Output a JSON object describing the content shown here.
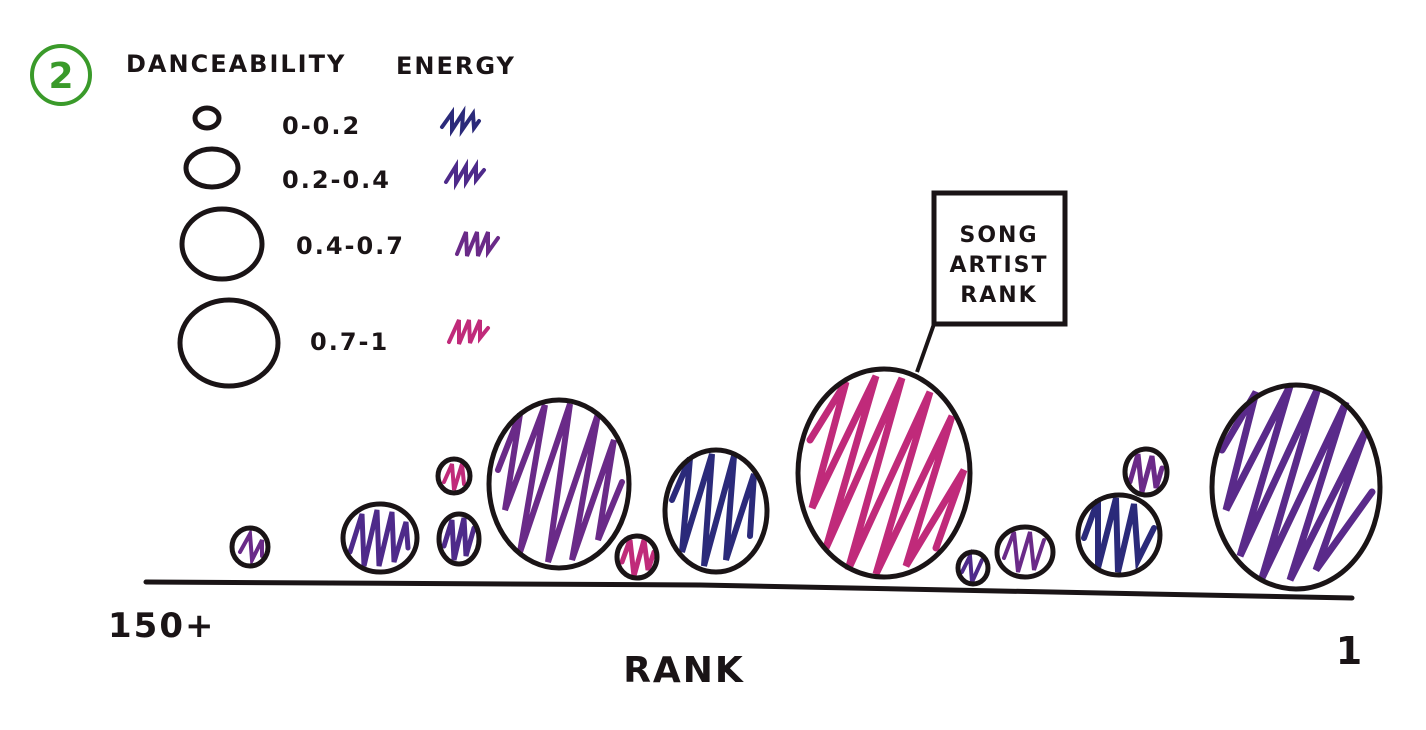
{
  "step_number": "2",
  "legend": {
    "size_header": "DANCEABILITY",
    "color_header": "ENERGY",
    "items": [
      {
        "label": "0-0.2",
        "color": "#2b2a7a"
      },
      {
        "label": "0.2-0.4",
        "color": "#4e2a8a"
      },
      {
        "label": "0.4-0.7",
        "color": "#6a2a88"
      },
      {
        "label": "0.7-1",
        "color": "#c02a7a"
      }
    ]
  },
  "tooltip": {
    "line1": "SONG",
    "line2": "ARTIST",
    "line3": "RANK"
  },
  "axis": {
    "label": "RANK",
    "left_label": "150+",
    "right_label": "1"
  },
  "colors": {
    "ink": "#1a1416",
    "step_green": "#3a9a2a",
    "energy_0_02": "#2b2a7a",
    "energy_02_04": "#4e2a8a",
    "energy_04_07": "#6a2a88",
    "energy_07_1": "#c02a7a"
  }
}
